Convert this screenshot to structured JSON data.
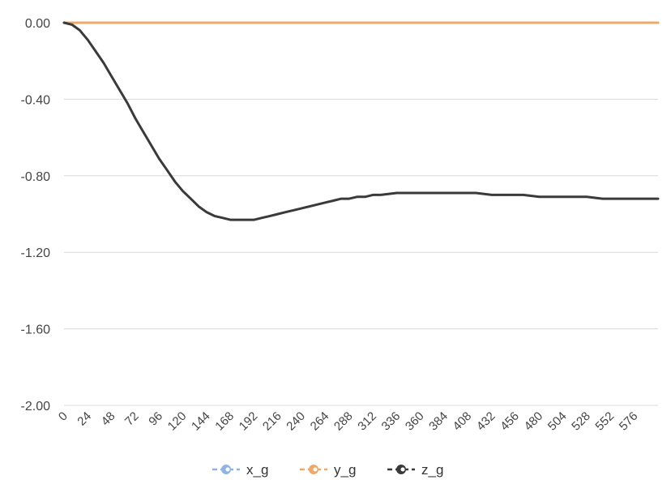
{
  "chart_data": {
    "type": "line",
    "title": "",
    "xlabel": "",
    "ylabel": "",
    "xlim": [
      0,
      600
    ],
    "ylim": [
      -2.0,
      0.0
    ],
    "y_ticks": [
      0.0,
      -0.4,
      -0.8,
      -1.2,
      -1.6,
      -2.0
    ],
    "y_tick_labels": [
      "0.00",
      "-0.40",
      "-0.80",
      "-1.20",
      "-1.60",
      "-2.00"
    ],
    "x_tick_labels": [
      "0",
      "24",
      "48",
      "72",
      "96",
      "120",
      "144",
      "168",
      "192",
      "216",
      "240",
      "264",
      "288",
      "312",
      "336",
      "360",
      "384",
      "408",
      "432",
      "456",
      "480",
      "504",
      "528",
      "552",
      "576"
    ],
    "grid": true,
    "legend_position": "bottom",
    "series": [
      {
        "name": "x_g",
        "color": "#8fb4e3",
        "x": [
          0,
          600
        ],
        "y": [
          0.0,
          0.0
        ]
      },
      {
        "name": "y_g",
        "color": "#f0a868",
        "x": [
          0,
          600
        ],
        "y": [
          0.0,
          0.0
        ]
      },
      {
        "name": "z_g",
        "color": "#3a3a3a",
        "x": [
          0,
          8,
          16,
          24,
          32,
          40,
          48,
          56,
          64,
          72,
          80,
          88,
          96,
          104,
          112,
          120,
          128,
          136,
          144,
          152,
          160,
          168,
          176,
          184,
          192,
          200,
          208,
          216,
          224,
          232,
          240,
          248,
          256,
          264,
          272,
          280,
          288,
          296,
          304,
          312,
          320,
          336,
          352,
          368,
          384,
          400,
          416,
          432,
          448,
          464,
          480,
          496,
          512,
          528,
          544,
          560,
          576,
          592,
          600
        ],
        "y": [
          0.0,
          -0.01,
          -0.04,
          -0.09,
          -0.15,
          -0.21,
          -0.28,
          -0.35,
          -0.42,
          -0.5,
          -0.57,
          -0.64,
          -0.71,
          -0.77,
          -0.83,
          -0.88,
          -0.92,
          -0.96,
          -0.99,
          -1.01,
          -1.02,
          -1.03,
          -1.03,
          -1.03,
          -1.03,
          -1.02,
          -1.01,
          -1.0,
          -0.99,
          -0.98,
          -0.97,
          -0.96,
          -0.95,
          -0.94,
          -0.93,
          -0.92,
          -0.92,
          -0.91,
          -0.91,
          -0.9,
          -0.9,
          -0.89,
          -0.89,
          -0.89,
          -0.89,
          -0.89,
          -0.89,
          -0.9,
          -0.9,
          -0.9,
          -0.91,
          -0.91,
          -0.91,
          -0.91,
          -0.92,
          -0.92,
          -0.92,
          -0.92,
          -0.92
        ]
      }
    ]
  }
}
